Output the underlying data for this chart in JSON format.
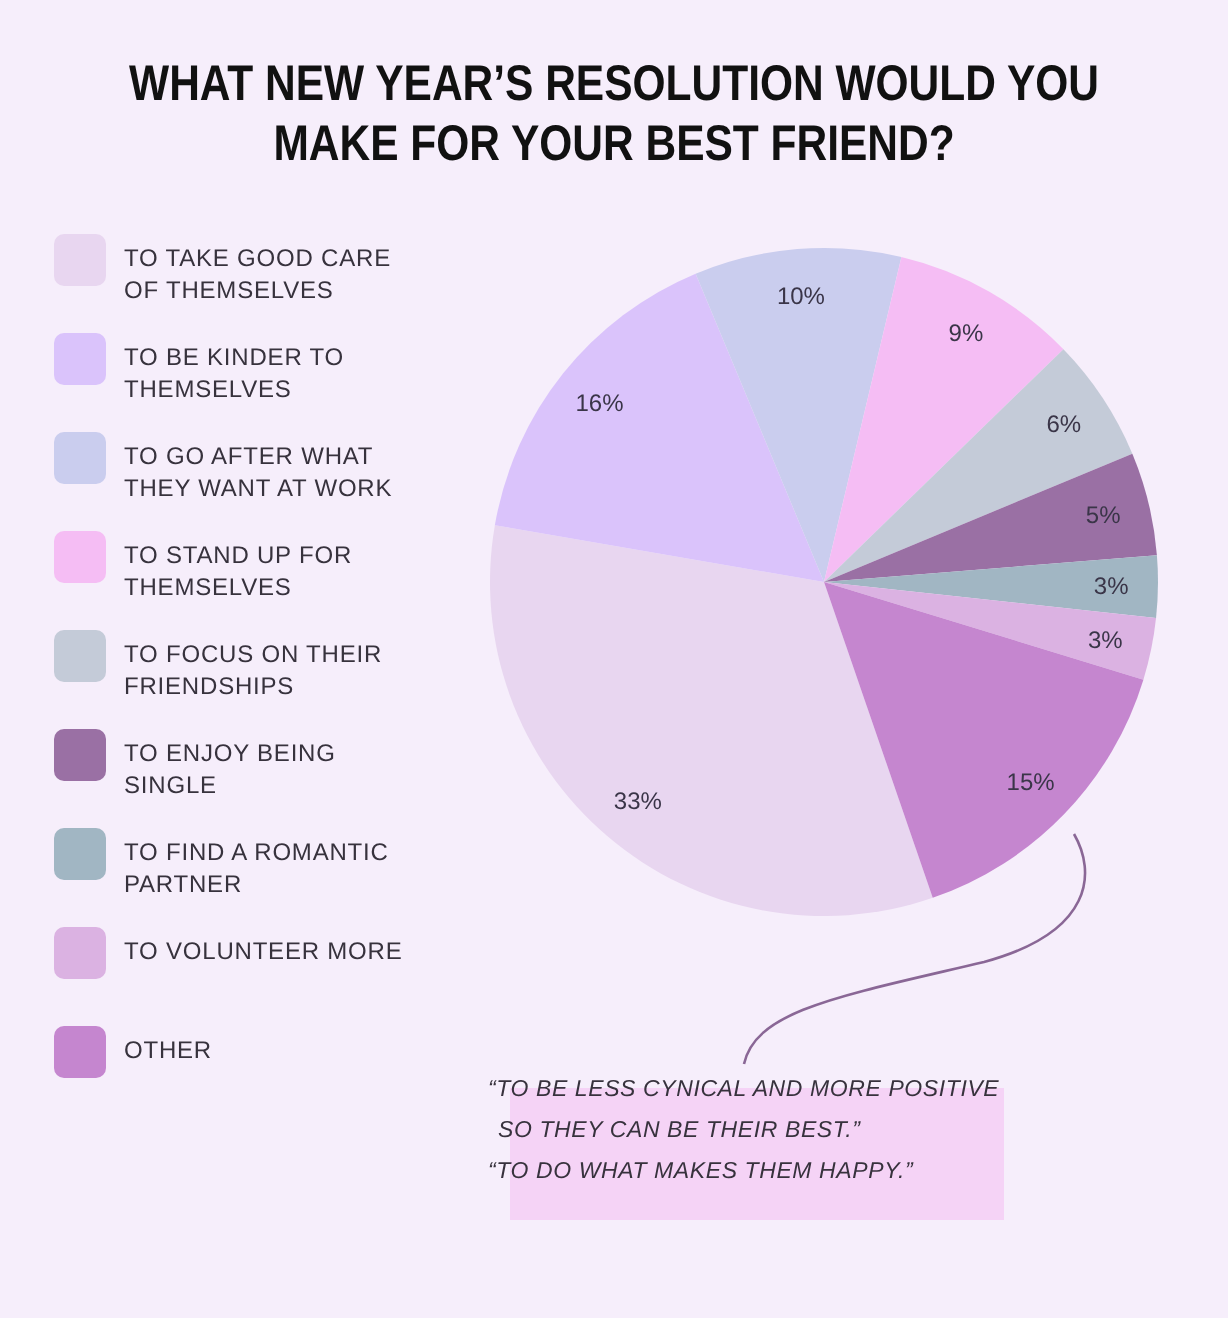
{
  "chart_data": {
    "type": "pie",
    "title": "WHAT NEW YEAR’S RESOLUTION WOULD YOU MAKE FOR YOUR BEST FRIEND?",
    "categories": [
      "TO TAKE GOOD CARE OF THEMSELVES",
      "TO BE KINDER TO THEMSELVES",
      "TO GO AFTER WHAT THEY WANT AT WORK",
      "TO STAND UP FOR THEMSELVES",
      "TO FOCUS ON THEIR FRIENDSHIPS",
      "TO ENJOY BEING SINGLE",
      "TO FIND A ROMANTIC PARTNER",
      "TO VOLUNTEER MORE",
      "OTHER"
    ],
    "values": [
      33,
      16,
      10,
      9,
      6,
      5,
      3,
      3,
      15
    ],
    "colors": [
      "#e8d6f0",
      "#dac3fb",
      "#cacdee",
      "#f5bdf4",
      "#c4cbd8",
      "#9a70a4",
      "#a1b6c3",
      "#dbb2e2",
      "#c586cf"
    ],
    "value_labels": [
      "33%",
      "16%",
      "10%",
      "9%",
      "6%",
      "5%",
      "3%",
      "3%",
      "15%"
    ],
    "legend": "left",
    "annotations": [
      "“TO BE LESS CYNICAL AND MORE POSITIVE SO THEY CAN BE THEIR BEST.”",
      "“TO DO WHAT MAKES THEM HAPPY.”"
    ]
  }
}
